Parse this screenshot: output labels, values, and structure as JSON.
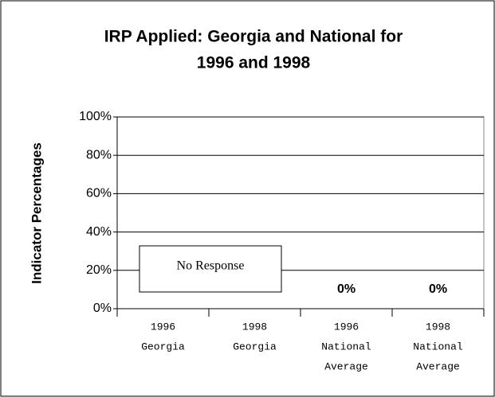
{
  "chart_data": {
    "type": "bar",
    "title": [
      "IRP Applied: Georgia and National for",
      "1996 and 1998"
    ],
    "y_label": "Indicator Percentages",
    "categories": [
      [
        "1996",
        "Georgia"
      ],
      [
        "1998",
        "Georgia"
      ],
      [
        "1996",
        "National",
        "Average"
      ],
      [
        "1998",
        "National",
        "Average"
      ]
    ],
    "values": [
      null,
      null,
      0,
      0
    ],
    "value_labels": [
      null,
      null,
      "0%",
      "0%"
    ],
    "annotation": "No Response",
    "ylim": [
      0,
      100
    ],
    "yticks": [
      {
        "value": 0,
        "label": "0%"
      },
      {
        "value": 20,
        "label": "20%"
      },
      {
        "value": 40,
        "label": "40%"
      },
      {
        "value": 60,
        "label": "60%"
      },
      {
        "value": 80,
        "label": "80%"
      },
      {
        "value": 100,
        "label": "100%"
      }
    ],
    "grid": true
  }
}
